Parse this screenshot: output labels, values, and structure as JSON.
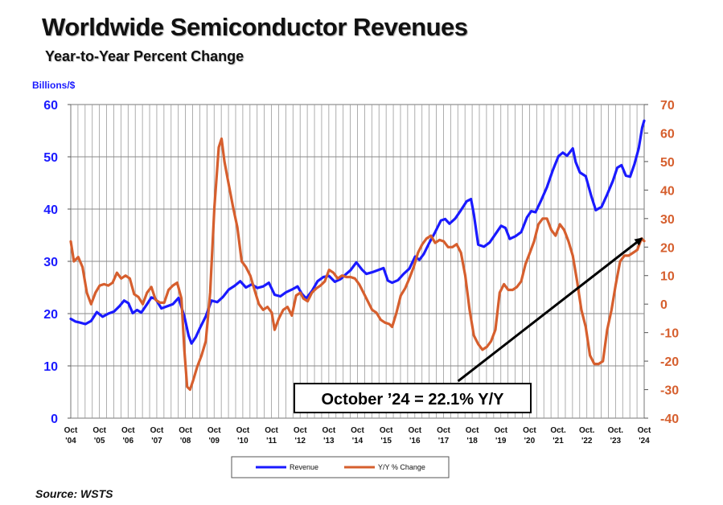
{
  "title": "Worldwide Semiconductor Revenues",
  "subtitle": "Year-to-Year Percent Change",
  "source": "Source: WSTS",
  "chart_data": {
    "type": "line",
    "title": "Worldwide Semiconductor Revenues",
    "subtitle": "Year-to-Year Percent Change",
    "left_axis": {
      "label": "Billions/$",
      "range": [
        0,
        60
      ],
      "ticks": [
        0,
        10,
        20,
        30,
        40,
        50,
        60
      ],
      "color": "#1a1aff"
    },
    "right_axis": {
      "range": [
        -40,
        70
      ],
      "ticks": [
        -40,
        -30,
        -20,
        -10,
        0,
        10,
        20,
        30,
        40,
        50,
        60,
        70
      ],
      "color": "#d65f2e"
    },
    "x_axis": {
      "range": [
        2004.79,
        2024.79
      ],
      "ticks": [
        {
          "x": 2004.79,
          "l1": "Oct",
          "l2": "'04"
        },
        {
          "x": 2005.79,
          "l1": "Oct",
          "l2": "'05"
        },
        {
          "x": 2006.79,
          "l1": "Oct",
          "l2": "'06"
        },
        {
          "x": 2007.79,
          "l1": "Oct",
          "l2": "'07"
        },
        {
          "x": 2008.79,
          "l1": "Oct",
          "l2": "'08"
        },
        {
          "x": 2009.79,
          "l1": "Oct",
          "l2": "'09"
        },
        {
          "x": 2010.79,
          "l1": "Oct",
          "l2": "'10"
        },
        {
          "x": 2011.79,
          "l1": "Oct",
          "l2": "'11"
        },
        {
          "x": 2012.79,
          "l1": "Oct",
          "l2": "'12"
        },
        {
          "x": 2013.79,
          "l1": "Oct",
          "l2": "'13"
        },
        {
          "x": 2014.79,
          "l1": "Oct",
          "l2": "'14"
        },
        {
          "x": 2015.79,
          "l1": "Oct",
          "l2": "'15"
        },
        {
          "x": 2016.79,
          "l1": "Oct",
          "l2": "'16"
        },
        {
          "x": 2017.79,
          "l1": "Oct",
          "l2": "'17"
        },
        {
          "x": 2018.79,
          "l1": "Oct",
          "l2": "'18"
        },
        {
          "x": 2019.79,
          "l1": "Oct",
          "l2": "'19"
        },
        {
          "x": 2020.79,
          "l1": "Oct",
          "l2": "'20"
        },
        {
          "x": 2021.79,
          "l1": "Oct.",
          "l2": "'21"
        },
        {
          "x": 2022.79,
          "l1": "Oct.",
          "l2": "'22"
        },
        {
          "x": 2023.79,
          "l1": "Oct.",
          "l2": "'23"
        },
        {
          "x": 2024.79,
          "l1": "Oct",
          "l2": "'24"
        }
      ],
      "grid": "vertical lines every 3 months"
    },
    "legend": {
      "placement": "bottom-center"
    },
    "series": [
      {
        "name": "Revenue",
        "axis": "left",
        "color": "#1a1aff",
        "points": [
          [
            2004.79,
            19.0
          ],
          [
            2004.95,
            18.5
          ],
          [
            2005.1,
            18.3
          ],
          [
            2005.3,
            18.0
          ],
          [
            2005.5,
            18.6
          ],
          [
            2005.7,
            20.3
          ],
          [
            2005.9,
            19.4
          ],
          [
            2006.1,
            20.0
          ],
          [
            2006.3,
            20.4
          ],
          [
            2006.5,
            21.5
          ],
          [
            2006.65,
            22.5
          ],
          [
            2006.8,
            22.0
          ],
          [
            2006.95,
            20.1
          ],
          [
            2007.1,
            20.7
          ],
          [
            2007.25,
            20.2
          ],
          [
            2007.45,
            21.8
          ],
          [
            2007.6,
            23.1
          ],
          [
            2007.75,
            22.8
          ],
          [
            2007.95,
            21.0
          ],
          [
            2008.15,
            21.4
          ],
          [
            2008.35,
            21.8
          ],
          [
            2008.55,
            23.0
          ],
          [
            2008.75,
            19.5
          ],
          [
            2008.9,
            15.8
          ],
          [
            2009.0,
            14.3
          ],
          [
            2009.15,
            15.5
          ],
          [
            2009.3,
            17.3
          ],
          [
            2009.5,
            19.5
          ],
          [
            2009.7,
            22.5
          ],
          [
            2009.9,
            22.2
          ],
          [
            2010.1,
            23.2
          ],
          [
            2010.3,
            24.6
          ],
          [
            2010.5,
            25.3
          ],
          [
            2010.7,
            26.2
          ],
          [
            2010.9,
            25.0
          ],
          [
            2011.1,
            25.6
          ],
          [
            2011.3,
            24.9
          ],
          [
            2011.5,
            25.2
          ],
          [
            2011.7,
            25.9
          ],
          [
            2011.9,
            23.6
          ],
          [
            2012.1,
            23.3
          ],
          [
            2012.3,
            24.1
          ],
          [
            2012.5,
            24.6
          ],
          [
            2012.7,
            25.2
          ],
          [
            2012.85,
            23.8
          ],
          [
            2013.0,
            22.9
          ],
          [
            2013.2,
            24.3
          ],
          [
            2013.4,
            26.2
          ],
          [
            2013.6,
            27.0
          ],
          [
            2013.8,
            27.2
          ],
          [
            2014.0,
            26.1
          ],
          [
            2014.2,
            26.6
          ],
          [
            2014.4,
            27.6
          ],
          [
            2014.55,
            28.3
          ],
          [
            2014.75,
            29.8
          ],
          [
            2014.95,
            28.4
          ],
          [
            2015.1,
            27.6
          ],
          [
            2015.3,
            27.9
          ],
          [
            2015.5,
            28.3
          ],
          [
            2015.7,
            28.7
          ],
          [
            2015.85,
            26.3
          ],
          [
            2016.0,
            25.9
          ],
          [
            2016.2,
            26.4
          ],
          [
            2016.4,
            27.6
          ],
          [
            2016.6,
            28.6
          ],
          [
            2016.8,
            30.9
          ],
          [
            2016.95,
            30.3
          ],
          [
            2017.1,
            31.4
          ],
          [
            2017.3,
            33.6
          ],
          [
            2017.5,
            35.6
          ],
          [
            2017.7,
            37.8
          ],
          [
            2017.85,
            38.1
          ],
          [
            2018.0,
            37.2
          ],
          [
            2018.2,
            38.2
          ],
          [
            2018.4,
            39.8
          ],
          [
            2018.6,
            41.5
          ],
          [
            2018.75,
            41.9
          ],
          [
            2018.85,
            39.0
          ],
          [
            2019.0,
            33.2
          ],
          [
            2019.2,
            32.8
          ],
          [
            2019.4,
            33.6
          ],
          [
            2019.6,
            35.2
          ],
          [
            2019.8,
            36.8
          ],
          [
            2019.95,
            36.4
          ],
          [
            2020.1,
            34.3
          ],
          [
            2020.3,
            34.8
          ],
          [
            2020.5,
            35.6
          ],
          [
            2020.7,
            38.4
          ],
          [
            2020.85,
            39.6
          ],
          [
            2021.0,
            39.4
          ],
          [
            2021.2,
            41.7
          ],
          [
            2021.4,
            44.2
          ],
          [
            2021.6,
            47.4
          ],
          [
            2021.8,
            50.1
          ],
          [
            2021.95,
            50.8
          ],
          [
            2022.1,
            50.2
          ],
          [
            2022.3,
            51.6
          ],
          [
            2022.4,
            49.0
          ],
          [
            2022.55,
            47.0
          ],
          [
            2022.75,
            46.3
          ],
          [
            2022.95,
            42.4
          ],
          [
            2023.1,
            39.8
          ],
          [
            2023.3,
            40.4
          ],
          [
            2023.5,
            42.8
          ],
          [
            2023.7,
            45.4
          ],
          [
            2023.85,
            47.9
          ],
          [
            2024.0,
            48.4
          ],
          [
            2024.15,
            46.4
          ],
          [
            2024.3,
            46.2
          ],
          [
            2024.45,
            48.6
          ],
          [
            2024.6,
            51.6
          ],
          [
            2024.72,
            55.6
          ],
          [
            2024.79,
            56.9
          ]
        ]
      },
      {
        "name": "Y/Y % Change",
        "axis": "right",
        "color": "#d65f2e",
        "points": [
          [
            2004.79,
            22.0
          ],
          [
            2004.9,
            15.0
          ],
          [
            2005.05,
            16.5
          ],
          [
            2005.2,
            13.0
          ],
          [
            2005.35,
            4.0
          ],
          [
            2005.5,
            0.0
          ],
          [
            2005.65,
            4.0
          ],
          [
            2005.8,
            6.5
          ],
          [
            2005.95,
            7.0
          ],
          [
            2006.1,
            6.5
          ],
          [
            2006.25,
            7.5
          ],
          [
            2006.4,
            11.0
          ],
          [
            2006.55,
            9.0
          ],
          [
            2006.7,
            10.0
          ],
          [
            2006.85,
            9.0
          ],
          [
            2007.0,
            3.5
          ],
          [
            2007.15,
            2.5
          ],
          [
            2007.3,
            0.0
          ],
          [
            2007.45,
            4.0
          ],
          [
            2007.6,
            6.0
          ],
          [
            2007.75,
            1.5
          ],
          [
            2007.9,
            0.5
          ],
          [
            2008.05,
            0.5
          ],
          [
            2008.2,
            5.0
          ],
          [
            2008.35,
            6.5
          ],
          [
            2008.5,
            7.5
          ],
          [
            2008.65,
            2.0
          ],
          [
            2008.75,
            -16.0
          ],
          [
            2008.85,
            -29.0
          ],
          [
            2008.95,
            -30.0
          ],
          [
            2009.05,
            -27.0
          ],
          [
            2009.2,
            -22.0
          ],
          [
            2009.35,
            -18.0
          ],
          [
            2009.5,
            -13.0
          ],
          [
            2009.65,
            4.0
          ],
          [
            2009.8,
            34.0
          ],
          [
            2009.95,
            55.0
          ],
          [
            2010.05,
            58.0
          ],
          [
            2010.15,
            50.0
          ],
          [
            2010.3,
            42.0
          ],
          [
            2010.45,
            34.0
          ],
          [
            2010.6,
            27.0
          ],
          [
            2010.75,
            15.0
          ],
          [
            2010.9,
            13.0
          ],
          [
            2011.05,
            10.0
          ],
          [
            2011.2,
            5.0
          ],
          [
            2011.35,
            0.0
          ],
          [
            2011.5,
            -2.0
          ],
          [
            2011.65,
            -1.0
          ],
          [
            2011.8,
            -3.0
          ],
          [
            2011.9,
            -9.0
          ],
          [
            2012.05,
            -5.0
          ],
          [
            2012.2,
            -2.0
          ],
          [
            2012.35,
            -1.0
          ],
          [
            2012.5,
            -4.0
          ],
          [
            2012.65,
            3.0
          ],
          [
            2012.8,
            4.0
          ],
          [
            2012.9,
            2.0
          ],
          [
            2013.05,
            1.0
          ],
          [
            2013.2,
            4.0
          ],
          [
            2013.35,
            5.5
          ],
          [
            2013.5,
            6.5
          ],
          [
            2013.65,
            8.0
          ],
          [
            2013.8,
            12.0
          ],
          [
            2013.95,
            11.0
          ],
          [
            2014.1,
            9.0
          ],
          [
            2014.25,
            10.0
          ],
          [
            2014.4,
            9.5
          ],
          [
            2014.55,
            9.5
          ],
          [
            2014.7,
            9.0
          ],
          [
            2014.85,
            7.0
          ],
          [
            2015.0,
            4.0
          ],
          [
            2015.15,
            1.0
          ],
          [
            2015.3,
            -2.0
          ],
          [
            2015.45,
            -3.0
          ],
          [
            2015.6,
            -5.5
          ],
          [
            2015.75,
            -6.5
          ],
          [
            2015.9,
            -7.0
          ],
          [
            2016.0,
            -8.0
          ],
          [
            2016.15,
            -3.0
          ],
          [
            2016.3,
            3.0
          ],
          [
            2016.45,
            5.5
          ],
          [
            2016.6,
            9.0
          ],
          [
            2016.75,
            13.0
          ],
          [
            2016.9,
            18.0
          ],
          [
            2017.05,
            21.0
          ],
          [
            2017.2,
            23.0
          ],
          [
            2017.35,
            24.0
          ],
          [
            2017.5,
            21.5
          ],
          [
            2017.65,
            22.5
          ],
          [
            2017.8,
            22.0
          ],
          [
            2017.95,
            20.0
          ],
          [
            2018.1,
            20.0
          ],
          [
            2018.25,
            21.0
          ],
          [
            2018.4,
            18.0
          ],
          [
            2018.55,
            10.0
          ],
          [
            2018.7,
            -2.0
          ],
          [
            2018.85,
            -11.0
          ],
          [
            2019.0,
            -14.0
          ],
          [
            2019.15,
            -16.0
          ],
          [
            2019.3,
            -15.0
          ],
          [
            2019.45,
            -13.0
          ],
          [
            2019.6,
            -9.0
          ],
          [
            2019.75,
            4.0
          ],
          [
            2019.9,
            7.0
          ],
          [
            2020.05,
            5.0
          ],
          [
            2020.2,
            5.0
          ],
          [
            2020.35,
            6.0
          ],
          [
            2020.5,
            8.0
          ],
          [
            2020.65,
            14.0
          ],
          [
            2020.8,
            18.0
          ],
          [
            2020.95,
            22.0
          ],
          [
            2021.1,
            28.0
          ],
          [
            2021.25,
            30.0
          ],
          [
            2021.4,
            30.0
          ],
          [
            2021.55,
            26.0
          ],
          [
            2021.7,
            24.0
          ],
          [
            2021.85,
            28.0
          ],
          [
            2022.0,
            26.0
          ],
          [
            2022.15,
            22.0
          ],
          [
            2022.3,
            17.0
          ],
          [
            2022.45,
            8.0
          ],
          [
            2022.6,
            -2.0
          ],
          [
            2022.75,
            -8.0
          ],
          [
            2022.9,
            -18.0
          ],
          [
            2023.05,
            -21.0
          ],
          [
            2023.2,
            -21.0
          ],
          [
            2023.35,
            -20.0
          ],
          [
            2023.5,
            -9.0
          ],
          [
            2023.65,
            -2.0
          ],
          [
            2023.8,
            7.0
          ],
          [
            2023.95,
            15.0
          ],
          [
            2024.1,
            17.0
          ],
          [
            2024.25,
            17.0
          ],
          [
            2024.4,
            18.0
          ],
          [
            2024.55,
            19.0
          ],
          [
            2024.7,
            23.0
          ],
          [
            2024.79,
            22.1
          ]
        ]
      }
    ],
    "annotation": {
      "text": "October ’24 = 22.1% Y/Y",
      "arrow_from": [
        2018.3,
        -27.0
      ],
      "arrow_to": [
        2024.7,
        23.0
      ]
    }
  }
}
